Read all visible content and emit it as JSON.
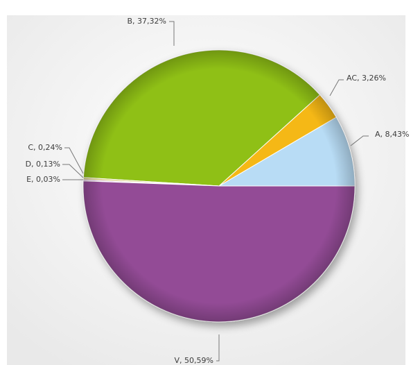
{
  "chart_data": {
    "type": "pie",
    "title": "",
    "decimal_separator": ",",
    "slices": [
      {
        "label": "A",
        "value": 8.43,
        "display": "A, 8,43%",
        "color": "#b8dcf5"
      },
      {
        "label": "AC",
        "value": 3.26,
        "display": "AC, 3,26%",
        "color": "#f5b816"
      },
      {
        "label": "B",
        "value": 37.32,
        "display": "B, 37,32%",
        "color": "#8fc012"
      },
      {
        "label": "C",
        "value": 0.24,
        "display": "C, 0,24%",
        "color": "#d6cd77"
      },
      {
        "label": "D",
        "value": 0.13,
        "display": "D, 0,13%",
        "color": "#b56bb0"
      },
      {
        "label": "E",
        "value": 0.03,
        "display": "E, 0,03%",
        "color": "#c9c9c9"
      },
      {
        "label": "V",
        "value": 50.59,
        "display": "V, 50,59%",
        "color": "#934c96"
      }
    ],
    "background": "#f4f4f4"
  }
}
